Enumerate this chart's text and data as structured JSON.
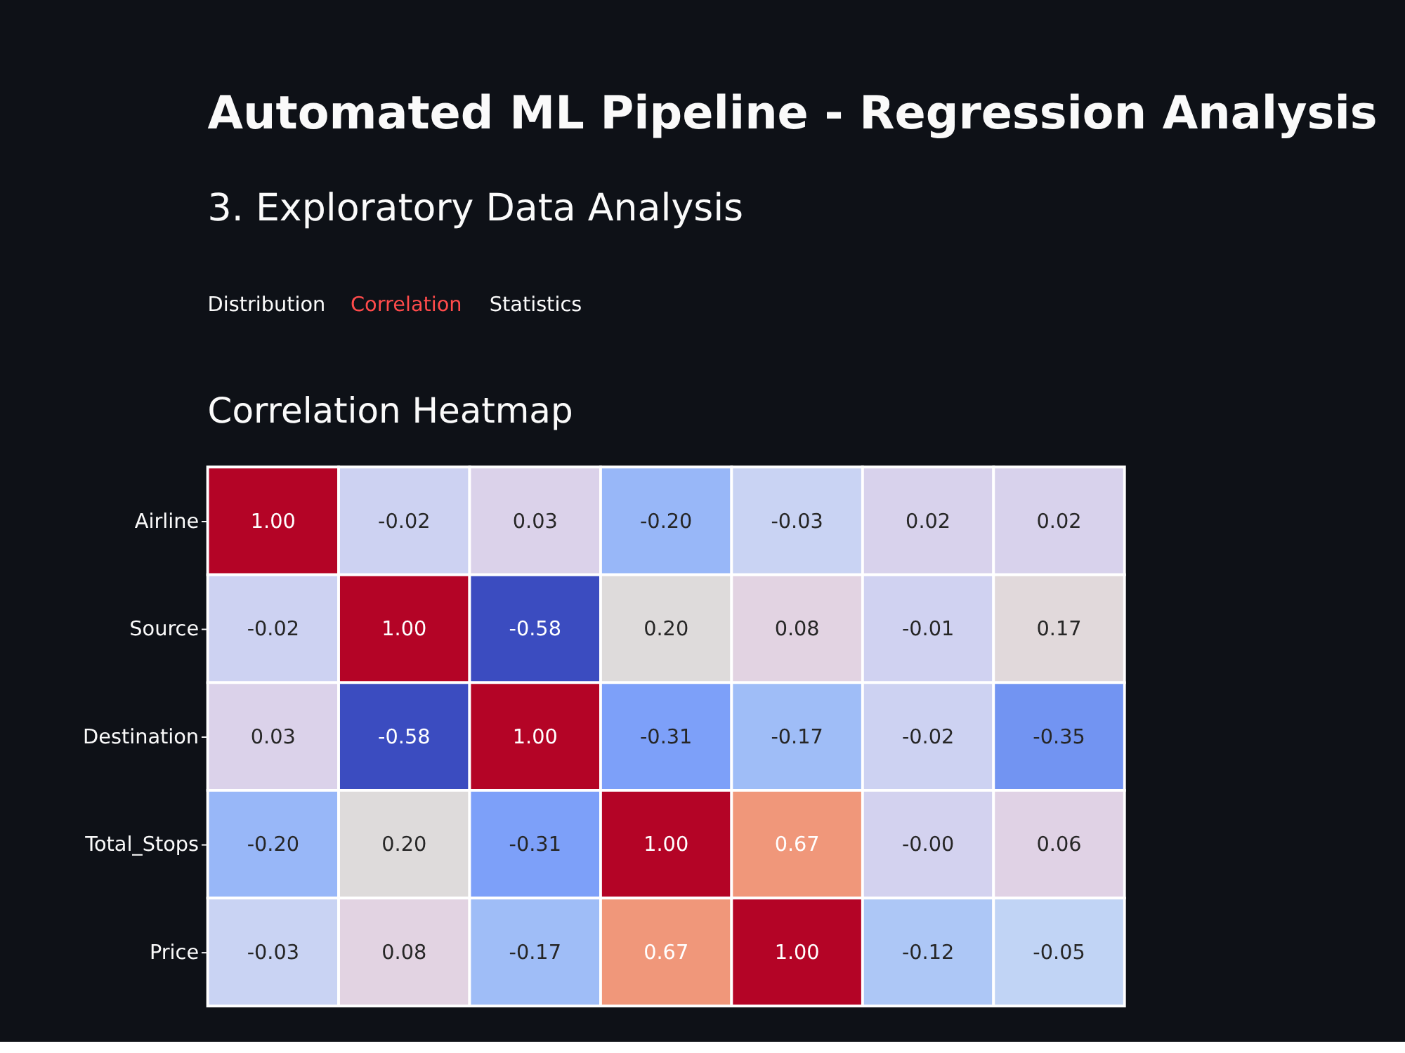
{
  "chart_data": {
    "type": "heatmap",
    "title": "Automated ML Pipeline - Regression Analysis",
    "subtitle": "3. Exploratory Data Analysis",
    "annotations": [
      "Distribution",
      "Correlation",
      "Statistics",
      "Correlation Heatmap"
    ],
    "categories": [
      null,
      null,
      null,
      null,
      null,
      null,
      null
    ],
    "y_categories": [
      "Airline",
      "Source",
      "Destination",
      "Total_Stops",
      "Price"
    ],
    "cells": [
      [
        1.0,
        -0.02,
        0.03,
        -0.2,
        -0.03,
        0.02,
        0.02
      ],
      [
        -0.02,
        1.0,
        -0.58,
        0.2,
        0.08,
        -0.01,
        0.17
      ],
      [
        0.03,
        -0.58,
        1.0,
        -0.31,
        -0.17,
        -0.02,
        -0.35
      ],
      [
        -0.2,
        0.2,
        -0.31,
        1.0,
        0.67,
        -0.0,
        0.06
      ],
      [
        -0.03,
        0.08,
        -0.17,
        0.67,
        1.0,
        -0.12,
        -0.05
      ]
    ],
    "cell_labels": [
      [
        "1.00",
        "-0.02",
        "0.03",
        "-0.20",
        "-0.03",
        "0.02",
        "0.02"
      ],
      [
        "-0.02",
        "1.00",
        "-0.58",
        "0.20",
        "0.08",
        "-0.01",
        "0.17"
      ],
      [
        "0.03",
        "-0.58",
        "1.00",
        "-0.31",
        "-0.17",
        "-0.02",
        "-0.35"
      ],
      [
        "-0.20",
        "0.20",
        "-0.31",
        "1.00",
        "0.67",
        "-0.00",
        "0.06"
      ],
      [
        "-0.03",
        "0.08",
        "-0.17",
        "0.67",
        "1.00",
        "-0.12",
        "-0.05"
      ]
    ],
    "tick_labels": "y",
    "data_labels": true
  }
}
